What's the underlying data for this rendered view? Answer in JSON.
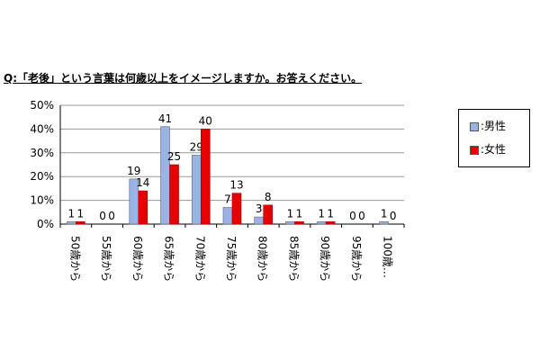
{
  "chart_data": {
    "type": "bar",
    "title": "Q:「老後」という言葉は何歳以上をイメージしますか。お答えください。",
    "categories": [
      "50歳から",
      "55歳から",
      "60歳から",
      "65歳から",
      "70歳から",
      "75歳から",
      "80歳から",
      "85歳から",
      "90歳から",
      "95歳から",
      "100歳…"
    ],
    "series": [
      {
        "name": ":男性",
        "color": "#99b3e6",
        "values": [
          1,
          0,
          19,
          41,
          29,
          7,
          3,
          1,
          1,
          0,
          1
        ]
      },
      {
        "name": ":女性",
        "color": "#e60000",
        "values": [
          1,
          0,
          14,
          25,
          40,
          13,
          8,
          1,
          1,
          0,
          0
        ]
      }
    ],
    "ylim": [
      0,
      50
    ],
    "yticks": [
      "0%",
      "10%",
      "20%",
      "30%",
      "40%",
      "50%"
    ],
    "grid": true,
    "legend_position": "right"
  }
}
